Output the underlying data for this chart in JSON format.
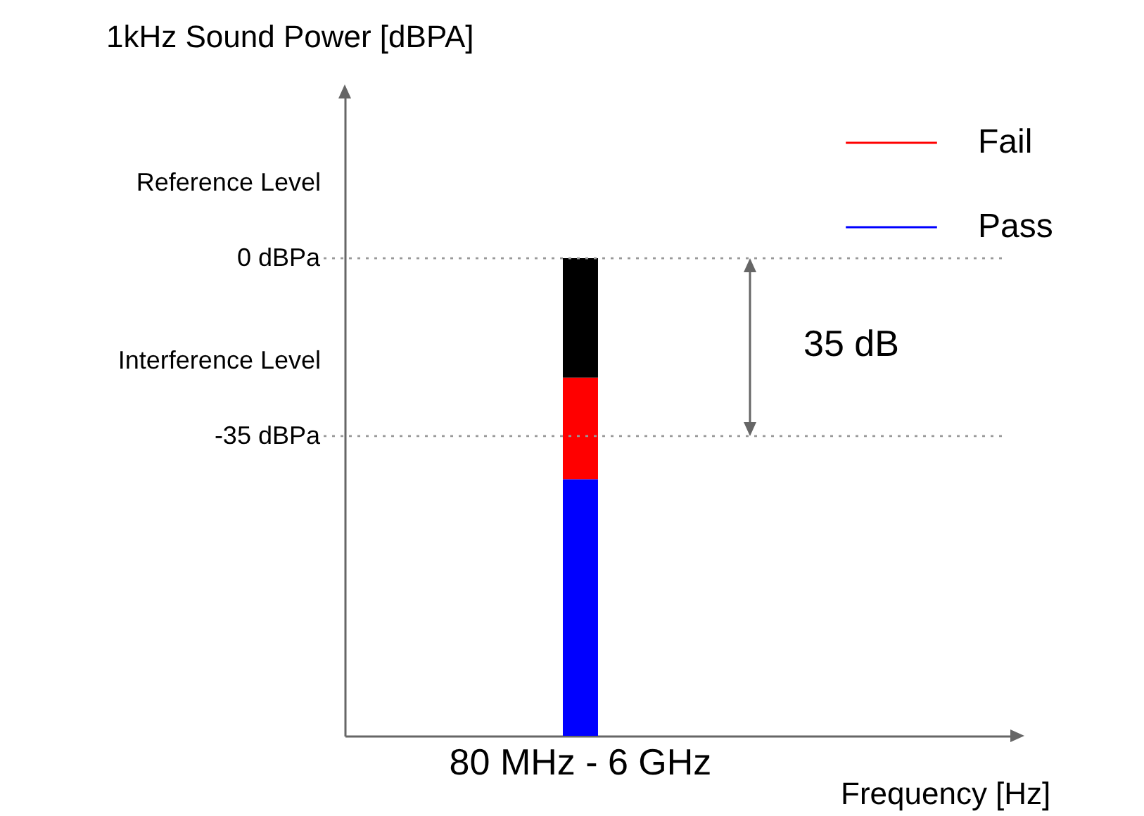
{
  "chart_data": {
    "type": "bar",
    "xlabel": "Frequency [Hz]",
    "ylabel": "1kHz Sound Power [dBPA]",
    "categories": [
      "80 MHz - 6 GHz"
    ],
    "series": [
      {
        "name": "Pass",
        "color": "#0000ff",
        "base": [
          -94
        ],
        "values": [
          50.5
        ]
      },
      {
        "name": "Fail",
        "color": "#ff0000",
        "base": [
          -43.5
        ],
        "values": [
          20
        ]
      },
      {
        "color": "#000000",
        "base": [
          -23.5
        ],
        "values": [
          23.5
        ]
      }
    ],
    "ylim": [
      -94,
      32
    ],
    "yticks": [
      {
        "value": 0,
        "label": "0 dBPa"
      },
      {
        "value": -35,
        "label": "-35 dBPa"
      }
    ],
    "ref_lines": [
      {
        "axis": "y",
        "value": 0,
        "label": "Reference Level",
        "color": "#999999",
        "line_style": "dotted"
      },
      {
        "axis": "y",
        "value": -35,
        "label": "Interference Level",
        "color": "#999999",
        "line_style": "dotted"
      }
    ],
    "annotations": [
      "35 dB"
    ],
    "grid": false,
    "legend": "top right"
  }
}
